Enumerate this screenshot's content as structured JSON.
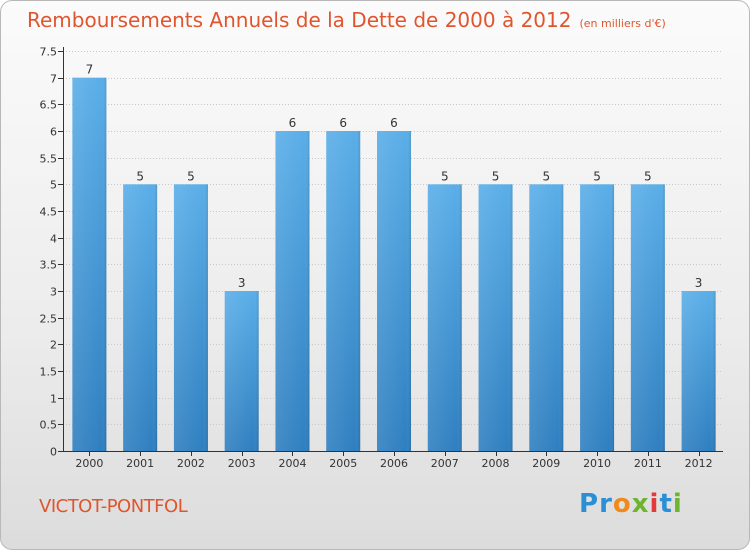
{
  "title": "Remboursements Annuels de la Dette de 2000 à 2012",
  "unit_label": "(en milliers d'€)",
  "town": "VICTOT-PONTFOL",
  "brand": {
    "letters": [
      "P",
      "r",
      "o",
      "x",
      "i",
      "t",
      "i"
    ],
    "colors": [
      "#2a8fd4",
      "#2a8fd4",
      "#f08a1c",
      "#6cb52d",
      "#e23a3a",
      "#2a8fd4",
      "#6cb52d"
    ]
  },
  "colors": {
    "title": "#e0552e",
    "bar_top": "#5aaee8",
    "bar_bottom": "#2f7fc0",
    "axis": "#333333",
    "grid": "#c8c8c8"
  },
  "chart_data": {
    "type": "bar",
    "title": "Remboursements Annuels de la Dette de 2000 à 2012",
    "xlabel": "",
    "ylabel": "",
    "categories": [
      "2000",
      "2001",
      "2002",
      "2003",
      "2004",
      "2005",
      "2006",
      "2007",
      "2008",
      "2009",
      "2010",
      "2011",
      "2012"
    ],
    "values": [
      7,
      5,
      5,
      3,
      6,
      6,
      6,
      5,
      5,
      5,
      5,
      5,
      3
    ],
    "data_labels": [
      "7",
      "5",
      "5",
      "3",
      "6",
      "6",
      "6",
      "5",
      "5",
      "5",
      "5",
      "5",
      "3"
    ],
    "ylim": [
      0,
      7.5
    ],
    "y_ticks": [
      0,
      0.5,
      1,
      1.5,
      2,
      2.5,
      3,
      3.5,
      4,
      4.5,
      5,
      5.5,
      6,
      6.5,
      7,
      7.5
    ],
    "y_tick_labels": [
      "0",
      "0.5",
      "1",
      "1.5",
      "2",
      "2.5",
      "3",
      "3.5",
      "4",
      "4.5",
      "5",
      "5.5",
      "6",
      "6.5",
      "7",
      "7.5"
    ],
    "grid": true
  }
}
